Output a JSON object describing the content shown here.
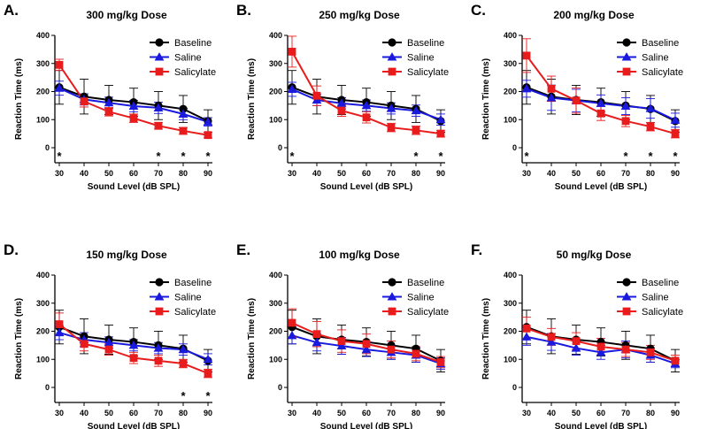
{
  "figure": {
    "legend_entries": [
      {
        "label": "Baseline",
        "color": "#000000",
        "marker": "circle"
      },
      {
        "label": "Saline",
        "color": "#1a1adf",
        "marker": "triangle"
      },
      {
        "label": "Salicylate",
        "color": "#e81c1c",
        "marker": "square"
      }
    ]
  },
  "chart_data": [
    {
      "type": "line",
      "panel": "A.",
      "title": "300 mg/kg Dose",
      "xlabel": "Sound Level (dB SPL)",
      "ylabel": "Reaction Time  (ms)",
      "x": [
        30,
        40,
        50,
        60,
        70,
        80,
        90
      ],
      "ylim": [
        0,
        400
      ],
      "yticks": [
        0,
        100,
        200,
        300,
        400
      ],
      "series": [
        {
          "name": "Baseline",
          "values": [
            215,
            182,
            170,
            162,
            150,
            138,
            95
          ],
          "errors": [
            60,
            62,
            52,
            50,
            50,
            48,
            40
          ]
        },
        {
          "name": "Saline",
          "values": [
            212,
            172,
            160,
            148,
            142,
            120,
            92
          ],
          "errors": [
            25,
            20,
            20,
            20,
            20,
            20,
            15
          ]
        },
        {
          "name": "Salicylate",
          "values": [
            295,
            165,
            128,
            105,
            78,
            60,
            45
          ],
          "errors": [
            20,
            20,
            15,
            15,
            12,
            12,
            10
          ]
        }
      ],
      "significance": [
        "*",
        "",
        "",
        "",
        "*",
        "*",
        "*"
      ]
    },
    {
      "type": "line",
      "panel": "B.",
      "title": "250 mg/kg Dose",
      "xlabel": "Sound Level (dB SPL)",
      "ylabel": "Reaction Time  (ms)",
      "x": [
        30,
        40,
        50,
        60,
        70,
        80,
        90
      ],
      "ylim": [
        0,
        400
      ],
      "yticks": [
        0,
        100,
        200,
        300,
        400
      ],
      "series": [
        {
          "name": "Baseline",
          "values": [
            215,
            182,
            170,
            162,
            150,
            138,
            95
          ],
          "errors": [
            60,
            62,
            52,
            50,
            50,
            48,
            40
          ]
        },
        {
          "name": "Saline",
          "values": [
            208,
            170,
            158,
            150,
            140,
            132,
            100
          ],
          "errors": [
            25,
            20,
            20,
            20,
            20,
            20,
            20
          ]
        },
        {
          "name": "Salicylate",
          "values": [
            342,
            185,
            132,
            108,
            72,
            62,
            50
          ],
          "errors": [
            55,
            35,
            20,
            20,
            15,
            15,
            12
          ]
        }
      ],
      "significance": [
        "*",
        "",
        "",
        "",
        "",
        "*",
        "*"
      ]
    },
    {
      "type": "line",
      "panel": "C.",
      "title": "200 mg/kg Dose",
      "xlabel": "Sound Level (dB SPL)",
      "ylabel": "Reaction Time  (ms)",
      "x": [
        30,
        40,
        50,
        60,
        70,
        80,
        90
      ],
      "ylim": [
        0,
        400
      ],
      "yticks": [
        0,
        100,
        200,
        300,
        400
      ],
      "series": [
        {
          "name": "Baseline",
          "values": [
            215,
            182,
            170,
            162,
            150,
            138,
            95
          ],
          "errors": [
            60,
            62,
            52,
            50,
            50,
            48,
            40
          ]
        },
        {
          "name": "Saline",
          "values": [
            210,
            178,
            168,
            158,
            148,
            140,
            98
          ],
          "errors": [
            30,
            45,
            40,
            30,
            30,
            35,
            25
          ]
        },
        {
          "name": "Salicylate",
          "values": [
            328,
            210,
            168,
            122,
            95,
            75,
            50
          ],
          "errors": [
            60,
            45,
            45,
            25,
            20,
            15,
            15
          ]
        }
      ],
      "significance": [
        "*",
        "",
        "",
        "",
        "*",
        "*",
        "*"
      ]
    },
    {
      "type": "line",
      "panel": "D.",
      "title": "150 mg/kg Dose",
      "xlabel": "Sound Level (dB SPL)",
      "ylabel": "Reaction Time  (ms)",
      "x": [
        30,
        40,
        50,
        60,
        70,
        80,
        90
      ],
      "ylim": [
        0,
        400
      ],
      "yticks": [
        0,
        100,
        200,
        300,
        400
      ],
      "series": [
        {
          "name": "Baseline",
          "values": [
            215,
            182,
            170,
            162,
            150,
            138,
            95
          ],
          "errors": [
            60,
            62,
            52,
            50,
            50,
            48,
            40
          ]
        },
        {
          "name": "Saline",
          "values": [
            195,
            170,
            160,
            150,
            140,
            135,
            100
          ],
          "errors": [
            25,
            25,
            20,
            20,
            20,
            20,
            20
          ]
        },
        {
          "name": "Salicylate",
          "values": [
            225,
            155,
            135,
            105,
            95,
            85,
            50
          ],
          "errors": [
            40,
            25,
            20,
            20,
            20,
            15,
            15
          ]
        }
      ],
      "significance": [
        "",
        "",
        "",
        "",
        "",
        "*",
        "*"
      ]
    },
    {
      "type": "line",
      "panel": "E.",
      "title": "100 mg/kg Dose",
      "xlabel": "Sound Level (dB SPL)",
      "ylabel": "Reaction Time  (ms)",
      "x": [
        30,
        40,
        50,
        60,
        70,
        80,
        90
      ],
      "ylim": [
        0,
        400
      ],
      "yticks": [
        0,
        100,
        200,
        300,
        400
      ],
      "series": [
        {
          "name": "Baseline",
          "values": [
            215,
            182,
            170,
            162,
            150,
            138,
            95
          ],
          "errors": [
            60,
            62,
            52,
            50,
            50,
            48,
            40
          ]
        },
        {
          "name": "Saline",
          "values": [
            185,
            160,
            148,
            135,
            125,
            115,
            85
          ],
          "errors": [
            30,
            30,
            30,
            25,
            25,
            25,
            20
          ]
        },
        {
          "name": "Salicylate",
          "values": [
            230,
            190,
            165,
            155,
            135,
            120,
            90
          ],
          "errors": [
            50,
            45,
            40,
            35,
            30,
            25,
            20
          ]
        }
      ],
      "significance": [
        "",
        "",
        "",
        "",
        "",
        "",
        ""
      ]
    },
    {
      "type": "line",
      "panel": "F.",
      "title": "50 mg/kg Dose",
      "xlabel": "Sound Level (dB SPL)",
      "ylabel": "Reaction Time  (ms)",
      "x": [
        30,
        40,
        50,
        60,
        70,
        80,
        90
      ],
      "ylim": [
        0,
        400
      ],
      "yticks": [
        0,
        100,
        200,
        300,
        400
      ],
      "series": [
        {
          "name": "Baseline",
          "values": [
            215,
            182,
            170,
            162,
            150,
            138,
            95
          ],
          "errors": [
            60,
            62,
            52,
            50,
            50,
            48,
            40
          ]
        },
        {
          "name": "Saline",
          "values": [
            180,
            162,
            140,
            125,
            135,
            115,
            85
          ],
          "errors": [
            30,
            30,
            25,
            25,
            30,
            25,
            15
          ]
        },
        {
          "name": "Salicylate",
          "values": [
            210,
            180,
            165,
            145,
            135,
            125,
            95
          ],
          "errors": [
            40,
            30,
            30,
            30,
            25,
            25,
            20
          ]
        }
      ],
      "significance": [
        "",
        "",
        "",
        "",
        "",
        "",
        ""
      ]
    }
  ]
}
